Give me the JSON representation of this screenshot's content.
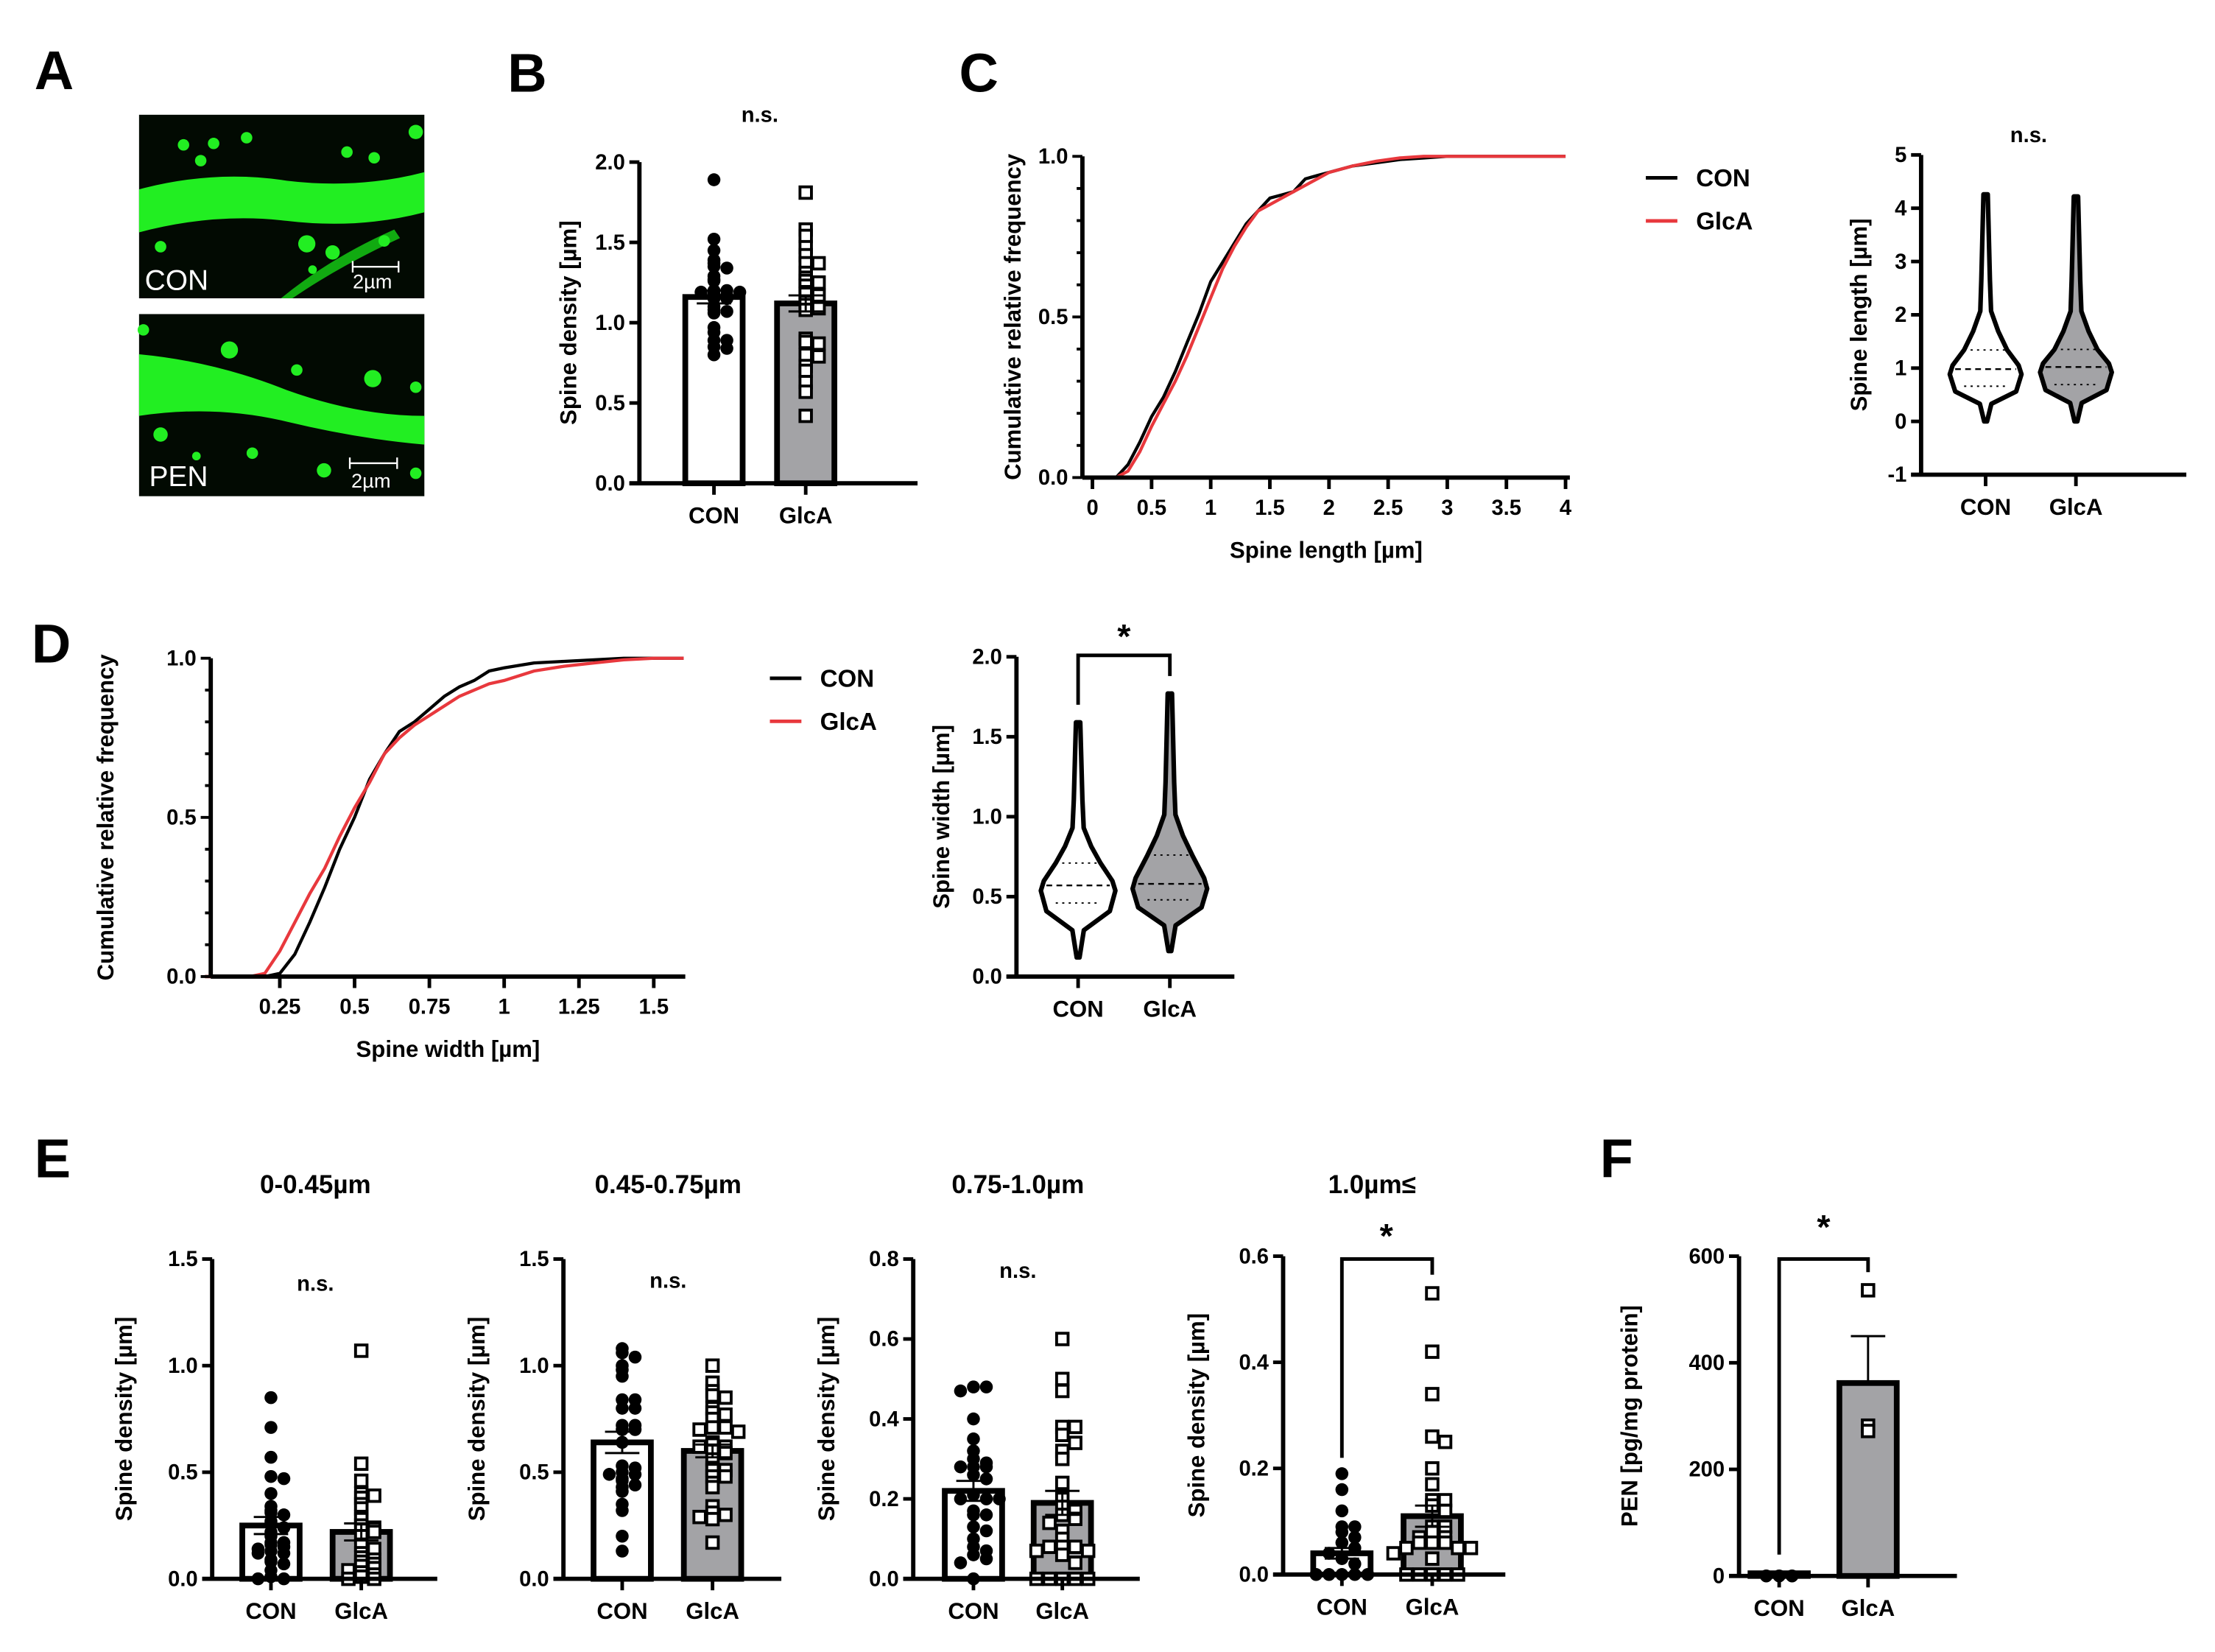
{
  "panels": {
    "A": {
      "letter": "A",
      "images": [
        {
          "label": "CON",
          "scale": "2µm"
        },
        {
          "label": "PEN",
          "scale": "2µm"
        }
      ]
    },
    "B": {
      "letter": "B"
    },
    "C": {
      "letter": "C"
    },
    "D": {
      "letter": "D"
    },
    "E": {
      "letter": "E"
    },
    "F": {
      "letter": "F"
    }
  },
  "colors": {
    "con_line": "#000000",
    "glca_line": "#e8383d",
    "glca_fill": "#a3a3a6",
    "con_fill": "#ffffff",
    "microscopy_green": "#22ff22"
  },
  "chart_data": [
    {
      "id": "B",
      "type": "bar",
      "title": "",
      "annotation": "n.s.",
      "categories": [
        "CON",
        "GlcA"
      ],
      "values": [
        1.16,
        1.12
      ],
      "sem": [
        0.04,
        0.05
      ],
      "ylabel": "Spine density [µm]",
      "ylim": [
        0,
        2.0
      ],
      "yticks": [
        "0.0",
        "0.5",
        "1.0",
        "1.5",
        "2.0"
      ],
      "points": {
        "CON": [
          1.89,
          1.52,
          1.45,
          1.39,
          1.37,
          1.35,
          1.34,
          1.29,
          1.27,
          1.26,
          1.2,
          1.2,
          1.19,
          1.19,
          1.18,
          1.17,
          1.15,
          1.15,
          1.1,
          1.08,
          1.07,
          1.06,
          0.97,
          0.94,
          0.89,
          0.89,
          0.85,
          0.84,
          0.8
        ],
        "GlcA": [
          1.81,
          1.58,
          1.54,
          1.47,
          1.42,
          1.37,
          1.37,
          1.31,
          1.28,
          1.26,
          1.25,
          1.23,
          1.19,
          1.18,
          1.17,
          1.13,
          1.11,
          1.09,
          1.08,
          0.9,
          0.88,
          0.87,
          0.8,
          0.79,
          0.73,
          0.7,
          0.63,
          0.57,
          0.42
        ]
      }
    },
    {
      "id": "C-cdf",
      "type": "line",
      "xlabel": "Spine length [µm]",
      "ylabel": "Cumulative relative frequency",
      "xlim": [
        0,
        4
      ],
      "ylim": [
        0,
        1.0
      ],
      "xticks": [
        "0",
        "0.5",
        "1",
        "1.5",
        "2",
        "2.5",
        "3",
        "3.5",
        "4"
      ],
      "yticks": [
        "0.0",
        "0.5",
        "1.0"
      ],
      "legend": [
        "CON",
        "GlcA"
      ],
      "x": [
        0,
        0.2,
        0.3,
        0.4,
        0.5,
        0.6,
        0.7,
        0.8,
        0.9,
        1.0,
        1.1,
        1.2,
        1.3,
        1.4,
        1.5,
        1.6,
        1.7,
        1.8,
        1.9,
        2.0,
        2.2,
        2.4,
        2.6,
        2.8,
        3.0,
        3.5,
        4.0
      ],
      "series": [
        {
          "name": "CON",
          "values": [
            0,
            0,
            0.04,
            0.11,
            0.19,
            0.25,
            0.33,
            0.42,
            0.51,
            0.61,
            0.67,
            0.73,
            0.79,
            0.83,
            0.87,
            0.88,
            0.89,
            0.93,
            0.94,
            0.95,
            0.97,
            0.98,
            0.99,
            0.995,
            1.0,
            1.0,
            1.0
          ]
        },
        {
          "name": "GlcA",
          "values": [
            0,
            0,
            0.02,
            0.08,
            0.16,
            0.23,
            0.3,
            0.38,
            0.47,
            0.56,
            0.65,
            0.72,
            0.78,
            0.83,
            0.85,
            0.87,
            0.89,
            0.91,
            0.93,
            0.95,
            0.97,
            0.985,
            0.995,
            1.0,
            1.0,
            1.0,
            1.0
          ]
        }
      ]
    },
    {
      "id": "C-violin",
      "type": "violin",
      "annotation": "n.s.",
      "categories": [
        "CON",
        "GlcA"
      ],
      "ylabel": "Spine length [µm]",
      "ylim": [
        -1,
        5
      ],
      "yticks": [
        "-1",
        "0",
        "1",
        "2",
        "3",
        "4",
        "5"
      ],
      "median": [
        0.98,
        1.02
      ],
      "q1": [
        0.66,
        0.69
      ],
      "q3": [
        1.34,
        1.35
      ],
      "min": [
        0.0,
        0.0
      ],
      "max": [
        4.26,
        4.22
      ]
    },
    {
      "id": "D-cdf",
      "type": "line",
      "xlabel": "Spine width [µm]",
      "ylabel": "Cumulative relative frequency",
      "xlim": [
        0,
        1.6
      ],
      "ylim": [
        0,
        1.0
      ],
      "xticks": [
        "0.25",
        "0.5",
        "0.75",
        "1",
        "1.25",
        "1.5"
      ],
      "yticks": [
        "0.0",
        "0.5",
        "1.0"
      ],
      "legend": [
        "CON",
        "GlcA"
      ],
      "x": [
        0,
        0.15,
        0.2,
        0.25,
        0.3,
        0.35,
        0.4,
        0.45,
        0.5,
        0.55,
        0.6,
        0.65,
        0.7,
        0.75,
        0.8,
        0.85,
        0.9,
        0.95,
        1.0,
        1.1,
        1.2,
        1.3,
        1.4,
        1.5,
        1.6
      ],
      "series": [
        {
          "name": "CON",
          "values": [
            0,
            0,
            0,
            0.01,
            0.07,
            0.17,
            0.28,
            0.4,
            0.5,
            0.62,
            0.7,
            0.77,
            0.8,
            0.84,
            0.88,
            0.91,
            0.93,
            0.96,
            0.97,
            0.985,
            0.99,
            0.995,
            1.0,
            1.0,
            1.0
          ]
        },
        {
          "name": "GlcA",
          "values": [
            0,
            0,
            0.01,
            0.08,
            0.17,
            0.26,
            0.34,
            0.44,
            0.53,
            0.61,
            0.7,
            0.75,
            0.79,
            0.82,
            0.85,
            0.88,
            0.9,
            0.92,
            0.93,
            0.96,
            0.975,
            0.985,
            0.995,
            1.0,
            1.0
          ]
        }
      ]
    },
    {
      "id": "D-violin",
      "type": "violin",
      "annotation": "*",
      "categories": [
        "CON",
        "GlcA"
      ],
      "ylabel": "Spine width [µm]",
      "ylim": [
        0,
        2.0
      ],
      "yticks": [
        "0.0",
        "0.5",
        "1.0",
        "1.5",
        "2.0"
      ],
      "median": [
        0.57,
        0.58
      ],
      "q1": [
        0.46,
        0.48
      ],
      "q3": [
        0.71,
        0.76
      ],
      "min": [
        0.12,
        0.16
      ],
      "max": [
        1.59,
        1.77
      ]
    },
    {
      "id": "E1",
      "type": "bar",
      "title": "0-0.45µm",
      "annotation": "n.s.",
      "categories": [
        "CON",
        "GlcA"
      ],
      "values": [
        0.25,
        0.22
      ],
      "sem": [
        0.04,
        0.04
      ],
      "ylabel": "Spine density [µm]",
      "ylim": [
        0,
        1.5
      ],
      "yticks": [
        "0.0",
        "0.5",
        "1.0",
        "1.5"
      ],
      "points": {
        "CON": [
          0.85,
          0.71,
          0.57,
          0.48,
          0.47,
          0.4,
          0.34,
          0.32,
          0.31,
          0.3,
          0.27,
          0.26,
          0.24,
          0.22,
          0.2,
          0.17,
          0.17,
          0.16,
          0.15,
          0.14,
          0.13,
          0.12,
          0.12,
          0.09,
          0.08,
          0.07,
          0.04,
          0.01,
          0.0,
          0.0
        ],
        "GlcA": [
          1.07,
          0.54,
          0.46,
          0.4,
          0.39,
          0.38,
          0.35,
          0.33,
          0.29,
          0.28,
          0.25,
          0.24,
          0.23,
          0.22,
          0.2,
          0.16,
          0.14,
          0.12,
          0.1,
          0.09,
          0.08,
          0.07,
          0.06,
          0.05,
          0.04,
          0.03,
          0.02,
          0.01,
          0.0,
          0.0
        ]
      }
    },
    {
      "id": "E2",
      "type": "bar",
      "title": "0.45-0.75µm",
      "annotation": "n.s.",
      "categories": [
        "CON",
        "GlcA"
      ],
      "values": [
        0.64,
        0.6
      ],
      "sem": [
        0.05,
        0.03
      ],
      "ylabel": "Spine density [µm]",
      "ylim": [
        0,
        1.5
      ],
      "yticks": [
        "0.0",
        "0.5",
        "1.0",
        "1.5"
      ],
      "points": {
        "CON": [
          1.08,
          1.06,
          1.04,
          1.0,
          0.98,
          0.95,
          0.84,
          0.84,
          0.8,
          0.8,
          0.72,
          0.72,
          0.7,
          0.7,
          0.64,
          0.53,
          0.52,
          0.5,
          0.49,
          0.49,
          0.47,
          0.46,
          0.44,
          0.43,
          0.41,
          0.35,
          0.32,
          0.2,
          0.13
        ],
        "GlcA": [
          1.0,
          0.92,
          0.88,
          0.86,
          0.85,
          0.8,
          0.78,
          0.77,
          0.75,
          0.71,
          0.71,
          0.7,
          0.69,
          0.64,
          0.63,
          0.62,
          0.62,
          0.6,
          0.59,
          0.56,
          0.52,
          0.51,
          0.51,
          0.48,
          0.48,
          0.45,
          0.43,
          0.34,
          0.31,
          0.3,
          0.29,
          0.28,
          0.17
        ]
      }
    },
    {
      "id": "E3",
      "type": "bar",
      "title": "0.75-1.0µm",
      "annotation": "n.s.",
      "categories": [
        "CON",
        "GlcA"
      ],
      "values": [
        0.22,
        0.19
      ],
      "sem": [
        0.025,
        0.03
      ],
      "ylabel": "Spine density [µm]",
      "ylim": [
        0,
        0.8
      ],
      "yticks": [
        "0.0",
        "0.2",
        "0.4",
        "0.6",
        "0.8"
      ],
      "points": {
        "CON": [
          0.48,
          0.48,
          0.47,
          0.4,
          0.35,
          0.32,
          0.3,
          0.29,
          0.28,
          0.28,
          0.28,
          0.26,
          0.25,
          0.21,
          0.2,
          0.2,
          0.2,
          0.17,
          0.16,
          0.16,
          0.13,
          0.12,
          0.1,
          0.08,
          0.07,
          0.06,
          0.05,
          0.04,
          0.0
        ],
        "GlcA": [
          0.6,
          0.5,
          0.47,
          0.38,
          0.38,
          0.36,
          0.34,
          0.32,
          0.3,
          0.24,
          0.2,
          0.18,
          0.17,
          0.16,
          0.15,
          0.14,
          0.12,
          0.1,
          0.08,
          0.08,
          0.08,
          0.07,
          0.07,
          0.06,
          0.04,
          0.0,
          0.0,
          0.0,
          0.0,
          0.0
        ]
      }
    },
    {
      "id": "E4",
      "type": "bar",
      "title": "1.0µm≤",
      "annotation": "*",
      "categories": [
        "CON",
        "GlcA"
      ],
      "values": [
        0.04,
        0.11
      ],
      "sem": [
        0.01,
        0.02
      ],
      "ylabel": "Spine density [µm]",
      "ylim": [
        0,
        0.6
      ],
      "yticks": [
        "0.0",
        "0.2",
        "0.4",
        "0.6"
      ],
      "points": {
        "CON": [
          0.19,
          0.16,
          0.12,
          0.09,
          0.09,
          0.08,
          0.07,
          0.06,
          0.05,
          0.04,
          0.03,
          0.02,
          0.0,
          0.0,
          0.0,
          0.0,
          0.0
        ],
        "GlcA": [
          0.53,
          0.42,
          0.34,
          0.26,
          0.25,
          0.2,
          0.17,
          0.14,
          0.14,
          0.13,
          0.12,
          0.09,
          0.09,
          0.08,
          0.07,
          0.07,
          0.06,
          0.06,
          0.06,
          0.05,
          0.05,
          0.05,
          0.04,
          0.03,
          0.0,
          0.0,
          0.0,
          0.0,
          0.0
        ]
      }
    },
    {
      "id": "F",
      "type": "bar",
      "title": "",
      "annotation": "*",
      "categories": [
        "CON",
        "GlcA"
      ],
      "values": [
        5,
        362
      ],
      "sem": [
        0,
        88
      ],
      "ylabel": "PEN [pg/mg protein]",
      "ylim": [
        0,
        600
      ],
      "yticks": [
        "0",
        "200",
        "400",
        "600"
      ],
      "points": {
        "CON": [
          0,
          0,
          0
        ],
        "GlcA": [
          536,
          282,
          272
        ]
      }
    }
  ]
}
